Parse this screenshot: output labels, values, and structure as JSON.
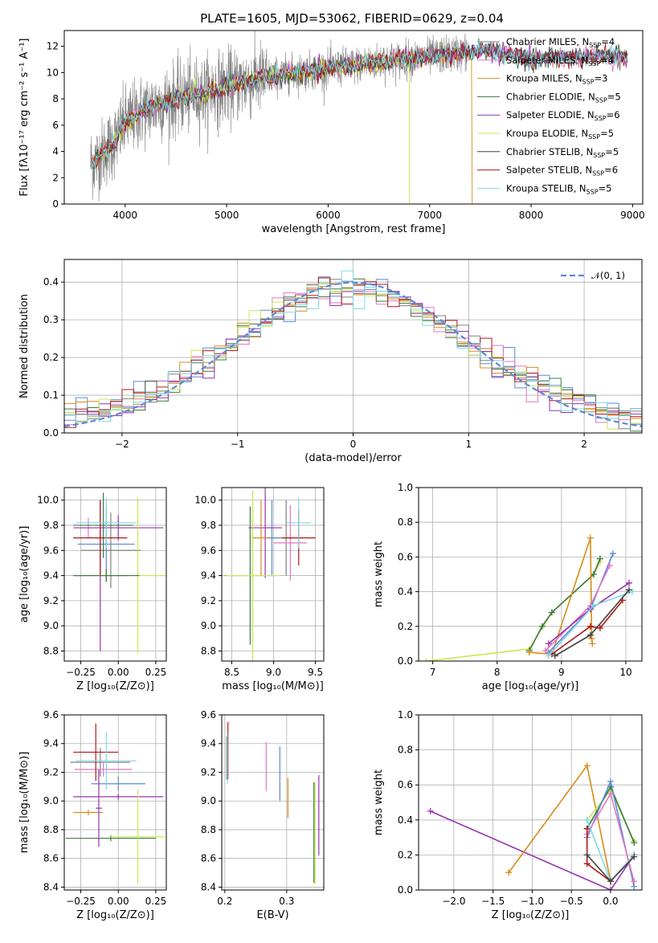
{
  "title": "PLATE=1605, MJD=53062, FIBERID=0629, z=0.04",
  "colors": [
    "#808080",
    "#e377c2",
    "#d98b1a",
    "#3c7a3c",
    "#9932b0",
    "#c8e850",
    "#404040",
    "#b01818",
    "#7fd8e6"
  ],
  "chart_data": [
    {
      "id": "spectrum",
      "type": "line",
      "xlabel": "wavelength [Angstrom, rest frame]",
      "ylabel": "Flux [fλ10⁻¹⁷ erg cm⁻² s⁻¹ A⁻¹]",
      "xlim": [
        3400,
        9100
      ],
      "ylim": [
        0,
        13.2
      ],
      "xticks": [
        4000,
        5000,
        6000,
        7000,
        8000,
        9000
      ],
      "yticks": [
        0,
        2,
        4,
        6,
        8,
        10,
        12
      ],
      "legend_position": "top-right",
      "legend": [
        {
          "label": "Chabrier MILES, N",
          "sub": "SSP",
          "suffix": "=4",
          "color": "#808080"
        },
        {
          "label": "Salpeter MILES, N",
          "sub": "SSP",
          "suffix": "=4",
          "color": "#e377c2"
        },
        {
          "label": "Kroupa MILES, N",
          "sub": "SSP",
          "suffix": "=3",
          "color": "#d98b1a"
        },
        {
          "label": "Chabrier ELODIE, N",
          "sub": "SSP",
          "suffix": "=5",
          "color": "#3c7a3c"
        },
        {
          "label": "Salpeter ELODIE, N",
          "sub": "SSP",
          "suffix": "=6",
          "color": "#9932b0"
        },
        {
          "label": "Kroupa ELODIE, N",
          "sub": "SSP",
          "suffix": "=5",
          "color": "#c8e850"
        },
        {
          "label": "Chabrier STELIB, N",
          "sub": "SSP",
          "suffix": "=5",
          "color": "#404040"
        },
        {
          "label": "Salpeter STELIB, N",
          "sub": "SSP",
          "suffix": "=6",
          "color": "#b01818"
        },
        {
          "label": "Kroupa STELIB, N",
          "sub": "SSP",
          "suffix": "=5",
          "color": "#7fd8e6"
        }
      ],
      "model_envelope": {
        "wavelength": [
          3700,
          3900,
          4000,
          4200,
          4500,
          5000,
          5300,
          5600,
          6000,
          6300,
          6600,
          7000,
          7300,
          7500,
          7800,
          8000,
          8300,
          8600,
          8900
        ],
        "flux": [
          3.2,
          4.8,
          6.2,
          7.2,
          8.0,
          8.9,
          9.5,
          9.9,
          10.3,
          10.6,
          10.9,
          11.2,
          11.5,
          11.7,
          11.4,
          11.0,
          11.2,
          11.3,
          11.2
        ]
      },
      "cutoffs": [
        {
          "wavelength": 6800,
          "color": "#c8e850"
        },
        {
          "wavelength": 7420,
          "color": "#d98b1a"
        }
      ]
    },
    {
      "id": "residuals",
      "type": "histogram",
      "xlabel": "(data-model)/error",
      "ylabel": "Normed distribution",
      "xlim": [
        -2.5,
        2.5
      ],
      "ylim": [
        0,
        0.46
      ],
      "xticks": [
        -2,
        -1,
        0,
        1,
        2
      ],
      "yticks": [
        0.0,
        0.1,
        0.2,
        0.3,
        0.4
      ],
      "grid": true,
      "legend_position": "top-right",
      "legend": [
        {
          "label": "𝒩(0, 1)",
          "color": "#5b8ad8",
          "style": "dashed"
        }
      ],
      "bin_width": 0.1
    },
    {
      "id": "age_vs_Z",
      "type": "scatter",
      "xlabel": "Z [log₁₀(Z/Z⊙)]",
      "ylabel": "age  [log₁₀(age/yr)]",
      "xlim": [
        -0.36,
        0.32
      ],
      "ylim": [
        8.72,
        10.1
      ],
      "xticks": [
        -0.25,
        0.0,
        0.25
      ],
      "yticks": [
        8.8,
        9.0,
        9.2,
        9.4,
        9.6,
        9.8,
        10.0
      ],
      "points": [
        {
          "x": -0.05,
          "y": 9.6,
          "xerr": 0.2,
          "yerr": 0.3,
          "color": "#808080"
        },
        {
          "x": -0.2,
          "y": 9.78,
          "xerr": 0.05,
          "yerr": 0.08,
          "color": "#e377c2"
        },
        {
          "x": -0.08,
          "y": 9.65,
          "xerr": 0.19,
          "yerr": 0.3,
          "color": "#5b8ad8"
        },
        {
          "x": -0.1,
          "y": 9.8,
          "xerr": 0.2,
          "yerr": 0.26,
          "color": "#3c7a3c"
        },
        {
          "x": 0.0,
          "y": 9.78,
          "xerr": 0.3,
          "yerr": 0.1,
          "color": "#9932b0"
        },
        {
          "x": -0.12,
          "y": 9.4,
          "xerr": 0.18,
          "yerr": 0.6,
          "color": "#9932b0"
        },
        {
          "x": 0.13,
          "y": 9.4,
          "xerr": 0.42,
          "yerr": 0.62,
          "color": "#c8e850"
        },
        {
          "x": -0.12,
          "y": 9.7,
          "xerr": 0.18,
          "yerr": 0.3,
          "color": "#b01818"
        },
        {
          "x": -0.08,
          "y": 9.82,
          "xerr": 0.2,
          "yerr": 0.2,
          "color": "#7fd8e6"
        },
        {
          "x": -0.08,
          "y": 9.4,
          "xerr": 0.22,
          "yerr": 0.05,
          "color": "#3c7a3c"
        }
      ]
    },
    {
      "id": "age_vs_mass",
      "type": "scatter",
      "xlabel": "mass [log₁₀(M/M⊙)]",
      "ylabel": "",
      "xlim": [
        8.38,
        9.6
      ],
      "ylim": [
        8.72,
        10.1
      ],
      "xticks": [
        8.5,
        9.0,
        9.5
      ],
      "yticks": [
        8.8,
        9.0,
        9.2,
        9.4,
        9.6,
        9.8,
        10.0
      ],
      "points": [
        {
          "x": 9.15,
          "y": 9.7,
          "xerr": 0.2,
          "yerr": 0.3,
          "color": "#808080"
        },
        {
          "x": 9.2,
          "y": 9.66,
          "xerr": 0.2,
          "yerr": 0.3,
          "color": "#e377c2"
        },
        {
          "x": 8.98,
          "y": 9.7,
          "xerr": 0.1,
          "yerr": 0.3,
          "color": "#5b8ad8"
        },
        {
          "x": 8.72,
          "y": 9.4,
          "xerr": 0.3,
          "yerr": 0.55,
          "color": "#3c7a3c"
        },
        {
          "x": 8.9,
          "y": 9.78,
          "xerr": 0.2,
          "yerr": 0.4,
          "color": "#9932b0"
        },
        {
          "x": 8.75,
          "y": 9.4,
          "xerr": 0.32,
          "yerr": 0.68,
          "color": "#c8e850"
        },
        {
          "x": 9.3,
          "y": 9.7,
          "xerr": 0.2,
          "yerr": 0.22,
          "color": "#b01818"
        },
        {
          "x": 9.3,
          "y": 9.82,
          "xerr": 0.15,
          "yerr": 0.2,
          "color": "#7fd8e6"
        },
        {
          "x": 8.85,
          "y": 9.7,
          "xerr": 0.1,
          "yerr": 0.3,
          "color": "#d98b1a"
        }
      ]
    },
    {
      "id": "weight_vs_age",
      "type": "line",
      "xlabel": "age  [log₁₀(age/yr)]",
      "ylabel": "mass weight",
      "xlim": [
        6.78,
        10.25
      ],
      "ylim": [
        0,
        1.0
      ],
      "xticks": [
        7,
        8,
        9,
        10
      ],
      "yticks": [
        0.0,
        0.2,
        0.4,
        0.6,
        0.8,
        1.0
      ],
      "grid": true,
      "series": [
        {
          "color": "#c8e850",
          "x": [
            6.9,
            8.5,
            8.85,
            9.5,
            9.6
          ],
          "y": [
            0.0,
            0.07,
            0.28,
            0.5,
            0.57
          ]
        },
        {
          "color": "#3c7a3c",
          "x": [
            8.5,
            8.7,
            8.85,
            9.5,
            9.6
          ],
          "y": [
            0.06,
            0.2,
            0.28,
            0.5,
            0.59
          ]
        },
        {
          "color": "#d98b1a",
          "x": [
            8.5,
            8.85,
            9.45,
            9.47,
            9.48
          ],
          "y": [
            0.05,
            0.04,
            0.71,
            0.13,
            0.1
          ]
        },
        {
          "color": "#5b8ad8",
          "x": [
            8.8,
            9.45,
            9.8
          ],
          "y": [
            0.05,
            0.3,
            0.62
          ]
        },
        {
          "color": "#e377c2",
          "x": [
            8.75,
            9.45,
            9.75
          ],
          "y": [
            0.06,
            0.32,
            0.55
          ]
        },
        {
          "color": "#9932b0",
          "x": [
            8.8,
            9.45,
            10.05
          ],
          "y": [
            0.1,
            0.3,
            0.45
          ]
        },
        {
          "color": "#b01818",
          "x": [
            8.85,
            9.45,
            9.6,
            9.95
          ],
          "y": [
            0.04,
            0.2,
            0.19,
            0.35
          ]
        },
        {
          "color": "#7fd8e6",
          "x": [
            8.8,
            9.5,
            10.1
          ],
          "y": [
            0.03,
            0.32,
            0.4
          ]
        },
        {
          "color": "#404040",
          "x": [
            8.9,
            9.45,
            10.05
          ],
          "y": [
            0.03,
            0.15,
            0.41
          ]
        }
      ]
    },
    {
      "id": "mass_vs_Z",
      "type": "scatter",
      "xlabel": "Z [log₁₀(Z/Z⊙)]",
      "ylabel": "mass [log₁₀(M/M⊙)]",
      "xlim": [
        -0.36,
        0.32
      ],
      "ylim": [
        8.38,
        9.6
      ],
      "xticks": [
        -0.25,
        0.0,
        0.25
      ],
      "yticks": [
        8.4,
        8.6,
        8.8,
        9.0,
        9.2,
        9.4,
        9.6
      ],
      "points": [
        {
          "x": -0.12,
          "y": 9.27,
          "xerr": 0.2,
          "yerr": 0.1,
          "color": "#808080"
        },
        {
          "x": -0.1,
          "y": 9.22,
          "xerr": 0.19,
          "yerr": 0.05,
          "color": "#e377c2"
        },
        {
          "x": 0.0,
          "y": 9.12,
          "xerr": 0.18,
          "yerr": 0.05,
          "color": "#5b8ad8"
        },
        {
          "x": -0.05,
          "y": 8.74,
          "xerr": 0.3,
          "yerr": 0.02,
          "color": "#3c7a3c"
        },
        {
          "x": 0.0,
          "y": 9.03,
          "xerr": 0.3,
          "yerr": 0.02,
          "color": "#9932b0"
        },
        {
          "x": 0.13,
          "y": 8.75,
          "xerr": 0.18,
          "yerr": 0.33,
          "color": "#c8e850"
        },
        {
          "x": -0.15,
          "y": 9.34,
          "xerr": 0.15,
          "yerr": 0.2,
          "color": "#b01818"
        },
        {
          "x": -0.08,
          "y": 9.28,
          "xerr": 0.2,
          "yerr": 0.2,
          "color": "#7fd8e6"
        },
        {
          "x": -0.2,
          "y": 8.92,
          "xerr": 0.1,
          "yerr": 0.02,
          "color": "#d98b1a"
        },
        {
          "x": -0.13,
          "y": 8.95,
          "xerr": 0.02,
          "yerr": 0.27,
          "color": "#9932b0"
        }
      ]
    },
    {
      "id": "mass_vs_ebv",
      "type": "scatter",
      "xlabel": "E(B-V)",
      "ylabel": "",
      "xlim": [
        0.195,
        0.36
      ],
      "ylim": [
        8.38,
        9.6
      ],
      "xticks": [
        0.2,
        0.3
      ],
      "yticks": [
        8.4,
        8.6,
        8.8,
        9.0,
        9.2,
        9.4,
        9.6
      ],
      "points": [
        {
          "x": 0.203,
          "y": 9.3,
          "xerr": 0,
          "yerr": 0.15,
          "color": "#808080"
        },
        {
          "x": 0.205,
          "y": 9.35,
          "xerr": 0,
          "yerr": 0.2,
          "color": "#b01818"
        },
        {
          "x": 0.204,
          "y": 9.3,
          "xerr": 0,
          "yerr": 0.18,
          "color": "#7fd8e6"
        },
        {
          "x": 0.267,
          "y": 9.24,
          "xerr": 0,
          "yerr": 0.17,
          "color": "#e377c2"
        },
        {
          "x": 0.289,
          "y": 9.19,
          "xerr": 0,
          "yerr": 0.19,
          "color": "#5b8ad8"
        },
        {
          "x": 0.302,
          "y": 9.02,
          "xerr": 0,
          "yerr": 0.14,
          "color": "#d98b1a"
        },
        {
          "x": 0.344,
          "y": 8.78,
          "xerr": 0,
          "yerr": 0.35,
          "color": "#3c7a3c"
        },
        {
          "x": 0.346,
          "y": 8.78,
          "xerr": 0,
          "yerr": 0.36,
          "color": "#c8e850"
        },
        {
          "x": 0.352,
          "y": 8.9,
          "xerr": 0,
          "yerr": 0.28,
          "color": "#9932b0"
        }
      ]
    },
    {
      "id": "weight_vs_Z",
      "type": "line",
      "xlabel": "Z [log₁₀(Z/Z⊙)]",
      "ylabel": "mass weight",
      "xlim": [
        -2.45,
        0.4
      ],
      "ylim": [
        0,
        1.0
      ],
      "xticks": [
        -2.0,
        -1.5,
        -1.0,
        -0.5,
        0.0
      ],
      "yticks": [
        0.0,
        0.2,
        0.4,
        0.6,
        0.8,
        1.0
      ],
      "grid": true,
      "series": [
        {
          "color": "#9932b0",
          "x": [
            -2.3,
            0.0,
            0.3
          ],
          "y": [
            0.45,
            0.0,
            0.2
          ]
        },
        {
          "color": "#d98b1a",
          "x": [
            -1.3,
            -0.3,
            0.0,
            0.3
          ],
          "y": [
            0.1,
            0.71,
            0.05,
            0.2
          ]
        },
        {
          "color": "#c8e850",
          "x": [
            -0.3,
            0.0,
            0.3
          ],
          "y": [
            0.4,
            0.57,
            0.28
          ]
        },
        {
          "color": "#3c7a3c",
          "x": [
            -0.3,
            0.0,
            0.3
          ],
          "y": [
            0.35,
            0.59,
            0.27
          ]
        },
        {
          "color": "#5b8ad8",
          "x": [
            -0.3,
            0.0,
            0.3
          ],
          "y": [
            0.3,
            0.62,
            0.02
          ]
        },
        {
          "color": "#e377c2",
          "x": [
            -0.3,
            0.0,
            0.3
          ],
          "y": [
            0.32,
            0.55,
            0.05
          ]
        },
        {
          "color": "#b01818",
          "x": [
            -0.3,
            -0.3,
            0.0,
            0.3
          ],
          "y": [
            0.35,
            0.15,
            0.05,
            0.2
          ]
        },
        {
          "color": "#7fd8e6",
          "x": [
            -0.3,
            0.0,
            0.3
          ],
          "y": [
            0.4,
            0.05,
            0.2
          ]
        },
        {
          "color": "#404040",
          "x": [
            -0.3,
            0.0,
            0.3
          ],
          "y": [
            0.2,
            0.05,
            0.19
          ]
        }
      ]
    }
  ]
}
